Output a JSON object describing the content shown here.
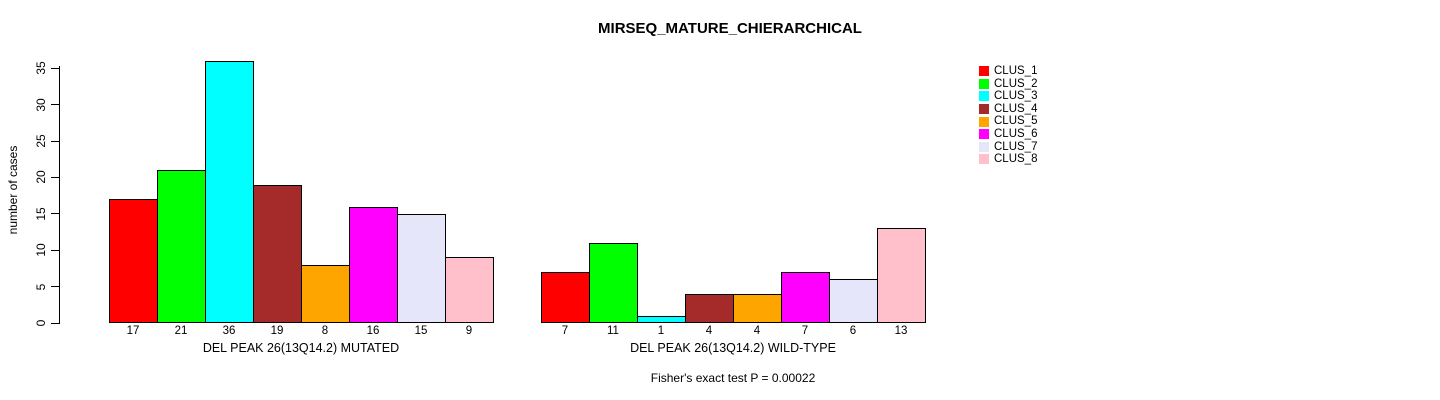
{
  "chart_data": {
    "type": "bar",
    "title": "MIRSEQ_MATURE_CHIERARCHICAL",
    "ylabel": "number of cases",
    "xlabel": "",
    "yticks": [
      0,
      5,
      10,
      15,
      20,
      25,
      30,
      35
    ],
    "ylim": [
      0,
      36.8
    ],
    "grid": false,
    "legend_position": "top-right",
    "series": [
      {
        "name": "CLUS_1",
        "color": "#FF0000"
      },
      {
        "name": "CLUS_2",
        "color": "#00FF00"
      },
      {
        "name": "CLUS_3",
        "color": "#00FFFF"
      },
      {
        "name": "CLUS_4",
        "color": "#A52A2A"
      },
      {
        "name": "CLUS_5",
        "color": "#FFA500"
      },
      {
        "name": "CLUS_6",
        "color": "#FF00FF"
      },
      {
        "name": "CLUS_7",
        "color": "#E6E6FA"
      },
      {
        "name": "CLUS_8",
        "color": "#FFC0CB"
      }
    ],
    "groups": [
      {
        "label": "DEL PEAK 26(13Q14.2) MUTATED",
        "values": [
          17,
          21,
          36,
          19,
          8,
          16,
          15,
          9
        ]
      },
      {
        "label": "DEL PEAK 26(13Q14.2) WILD-TYPE",
        "values": [
          7,
          11,
          1,
          4,
          4,
          7,
          6,
          13
        ]
      }
    ],
    "annotation": "Fisher's exact test P = 0.00022"
  }
}
